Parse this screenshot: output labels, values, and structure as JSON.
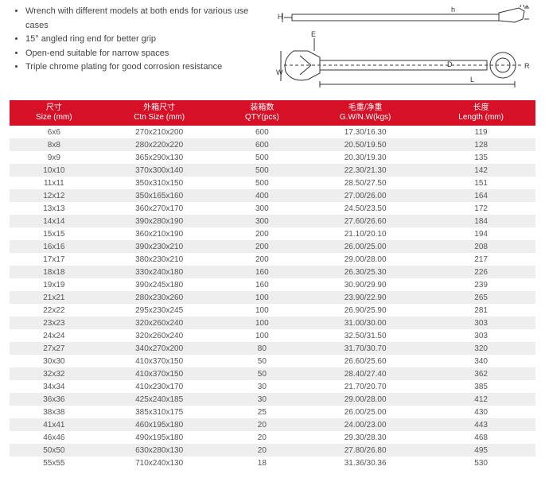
{
  "bullets": [
    "Wrench with different models at both ends for various use cases",
    "15° angled ring end for better grip",
    "Open-end suitable for narrow spaces",
    "Triple chrome plating for good corrosion resistance"
  ],
  "diagram_labels": {
    "H": "H",
    "h": "h",
    "H1": "H1",
    "E": "E",
    "W": "W",
    "D": "D",
    "L": "L",
    "R": "R"
  },
  "columns": [
    {
      "cn": "尺寸",
      "en": "Size (mm)"
    },
    {
      "cn": "外箱尺寸",
      "en": "Ctn Size (mm)"
    },
    {
      "cn": "装箱数",
      "en": "QTY(pcs)"
    },
    {
      "cn": "毛重/净重",
      "en": "G.W/N.W(kgs)"
    },
    {
      "cn": "长度",
      "en": "Length (mm)"
    }
  ],
  "rows": [
    [
      "6x6",
      "270x210x200",
      "600",
      "17.30/16.30",
      "119"
    ],
    [
      "8x8",
      "280x220x220",
      "600",
      "20.50/19.50",
      "128"
    ],
    [
      "9x9",
      "365x290x130",
      "500",
      "20.30/19.30",
      "135"
    ],
    [
      "10x10",
      "370x300x140",
      "500",
      "22.30/21.30",
      "142"
    ],
    [
      "11x11",
      "350x310x150",
      "500",
      "28.50/27.50",
      "151"
    ],
    [
      "12x12",
      "350x165x160",
      "400",
      "27.00/26.00",
      "164"
    ],
    [
      "13x13",
      "360x270x170",
      "300",
      "24.50/23.50",
      "172"
    ],
    [
      "14x14",
      "390x280x190",
      "300",
      "27.60/26.60",
      "184"
    ],
    [
      "15x15",
      "360x210x190",
      "200",
      "21.10/20.10",
      "194"
    ],
    [
      "16x16",
      "390x230x210",
      "200",
      "26.00/25.00",
      "208"
    ],
    [
      "17x17",
      "380x230x210",
      "200",
      "29.00/28.00",
      "217"
    ],
    [
      "18x18",
      "330x240x180",
      "160",
      "26.30/25.30",
      "226"
    ],
    [
      "19x19",
      "390x245x180",
      "160",
      "30.90/29.90",
      "239"
    ],
    [
      "21x21",
      "280x230x260",
      "100",
      "23.90/22.90",
      "265"
    ],
    [
      "22x22",
      "295x230x245",
      "100",
      "26.90/25.90",
      "281"
    ],
    [
      "23x23",
      "320x260x240",
      "100",
      "31.00/30.00",
      "303"
    ],
    [
      "24x24",
      "320x260x240",
      "100",
      "32.50/31.50",
      "303"
    ],
    [
      "27x27",
      "340x270x200",
      "80",
      "31.70/30.70",
      "320"
    ],
    [
      "30x30",
      "410x370x150",
      "50",
      "26.60/25.60",
      "340"
    ],
    [
      "32x32",
      "410x370x150",
      "50",
      "28.40/27.40",
      "362"
    ],
    [
      "34x34",
      "410x230x170",
      "30",
      "21.70/20.70",
      "385"
    ],
    [
      "36x36",
      "425x240x185",
      "30",
      "29.00/28.00",
      "412"
    ],
    [
      "38x38",
      "385x310x175",
      "25",
      "26.00/25.00",
      "430"
    ],
    [
      "41x41",
      "460x195x180",
      "20",
      "24.00/23.00",
      "443"
    ],
    [
      "46x46",
      "490x195x180",
      "20",
      "29.30/28.30",
      "468"
    ],
    [
      "50x50",
      "630x280x130",
      "20",
      "27.80/26.80",
      "495"
    ],
    [
      "55x55",
      "710x240x130",
      "18",
      "31.36/30.36",
      "530"
    ]
  ],
  "colors": {
    "header_bg": "#d51027",
    "header_fg": "#ffffff",
    "row_alt_bg": "#eeeeee",
    "row_bg": "#ffffff",
    "text": "#555555"
  }
}
